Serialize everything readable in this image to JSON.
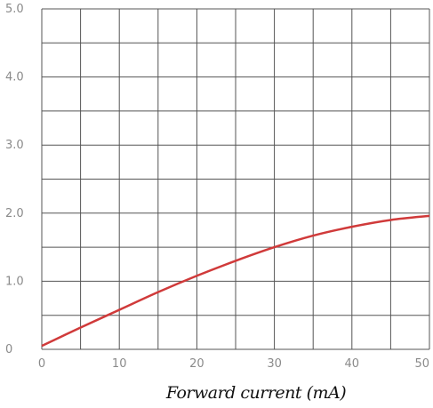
{
  "chart_data": {
    "type": "line",
    "title": "",
    "xlabel": "Forward current (mA)",
    "ylabel": "",
    "xlim": [
      0,
      50
    ],
    "ylim": [
      0,
      5.0
    ],
    "xticks": [
      0,
      10,
      20,
      30,
      40,
      50
    ],
    "xtick_labels": [
      "0",
      "10",
      "20",
      "30",
      "40",
      "50"
    ],
    "yticks": [
      0,
      1.0,
      2.0,
      3.0,
      4.0,
      5.0
    ],
    "ytick_labels": [
      "0",
      "1.0",
      "2.0",
      "3.0",
      "4.0",
      "5.0"
    ],
    "grid": true,
    "series": [
      {
        "color": "#d03a3a",
        "x": [
          0,
          5,
          10,
          15,
          20,
          25,
          30,
          35,
          40,
          45,
          50
        ],
        "y": [
          0.05,
          0.32,
          0.58,
          0.84,
          1.08,
          1.3,
          1.5,
          1.67,
          1.8,
          1.9,
          1.96
        ]
      }
    ]
  }
}
